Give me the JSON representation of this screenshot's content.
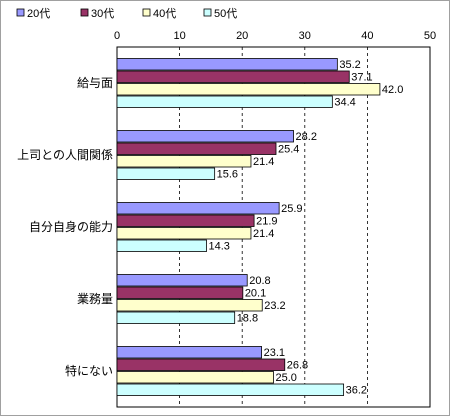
{
  "chart_data": {
    "type": "bar",
    "orientation": "horizontal",
    "categories": [
      "給与面",
      "上司との人間関係",
      "自分自身の能力",
      "業務量",
      "特にない"
    ],
    "series": [
      {
        "name": "20代",
        "color": "#9999ff",
        "values": [
          35.2,
          28.2,
          25.9,
          20.8,
          23.1
        ]
      },
      {
        "name": "30代",
        "color": "#993366",
        "values": [
          37.1,
          25.4,
          21.9,
          20.1,
          26.8
        ]
      },
      {
        "name": "40代",
        "color": "#ffffcc",
        "values": [
          42.0,
          21.4,
          21.4,
          23.2,
          25.0
        ]
      },
      {
        "name": "50代",
        "color": "#ccffff",
        "values": [
          34.4,
          15.6,
          14.3,
          18.8,
          36.2
        ]
      }
    ],
    "value_labels": [
      [
        "35.2",
        "28.2",
        "25.9",
        "20.8",
        "23.1"
      ],
      [
        "37.1",
        "25.4",
        "21.9",
        "20.1",
        "26.8"
      ],
      [
        "42.0",
        "21.4",
        "21.4",
        "23.2",
        "25.0"
      ],
      [
        "34.4",
        "15.6",
        "14.3",
        "18.8",
        "36.2"
      ]
    ],
    "xlim": [
      0,
      50
    ],
    "x_ticks": [
      0,
      10,
      20,
      30,
      40,
      50
    ],
    "grid": "vertical dashed",
    "legend_position": "top-left"
  }
}
